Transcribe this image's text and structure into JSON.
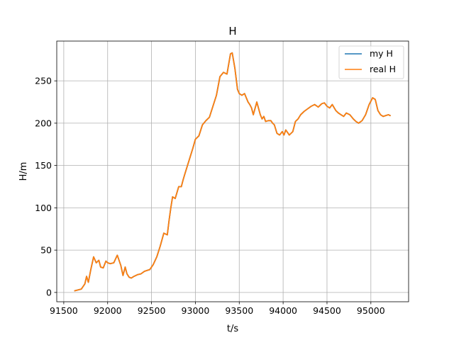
{
  "chart_data": {
    "type": "line",
    "title": "H",
    "xlabel": "t/s",
    "ylabel": "H/m",
    "xlim": [
      91420,
      95430
    ],
    "ylim": [
      -11,
      297
    ],
    "xticks": [
      91500,
      92000,
      92500,
      93000,
      93500,
      94000,
      94500,
      95000
    ],
    "xtick_labels": [
      "91500",
      "92000",
      "92500",
      "93000",
      "93500",
      "94000",
      "94500",
      "95000"
    ],
    "yticks": [
      0,
      50,
      100,
      150,
      200,
      250
    ],
    "ytick_labels": [
      "0",
      "50",
      "100",
      "150",
      "200",
      "250"
    ],
    "grid": true,
    "legend_position": "upper right",
    "series": [
      {
        "name": "my H",
        "color": "#1f77b4",
        "x": [
          91625,
          91700,
          91740,
          91760,
          91780,
          91810,
          91840,
          91870,
          91900,
          91920,
          91950,
          91980,
          92000,
          92030,
          92070,
          92110,
          92150,
          92175,
          92200,
          92220,
          92245,
          92270,
          92300,
          92340,
          92380,
          92420,
          92450,
          92480,
          92520,
          92560,
          92600,
          92640,
          92680,
          92700,
          92720,
          92740,
          92770,
          92790,
          92810,
          92840,
          92860,
          92880,
          92910,
          92940,
          92970,
          93000,
          93040,
          93080,
          93120,
          93160,
          93200,
          93240,
          93280,
          93320,
          93360,
          93400,
          93420,
          93450,
          93480,
          93500,
          93530,
          93560,
          93600,
          93620,
          93640,
          93660,
          93700,
          93740,
          93760,
          93780,
          93800,
          93830,
          93860,
          93880,
          93900,
          93930,
          93960,
          93990,
          94010,
          94030,
          94050,
          94070,
          94090,
          94110,
          94140,
          94170,
          94200,
          94240,
          94280,
          94320,
          94360,
          94400,
          94440,
          94470,
          94500,
          94530,
          94560,
          94600,
          94630,
          94660,
          94690,
          94720,
          94760,
          94800,
          94830,
          94860,
          94900,
          94940,
          94980,
          95020,
          95050,
          95080,
          95110,
          95140,
          95170,
          95200,
          95220
        ],
        "y": [
          2,
          4,
          10,
          19,
          12,
          28,
          42,
          35,
          38,
          30,
          29,
          37,
          35,
          34,
          35,
          44,
          32,
          20,
          30,
          22,
          18,
          17,
          19,
          21,
          22,
          25,
          26,
          27,
          33,
          42,
          55,
          70,
          68,
          85,
          100,
          113,
          111,
          118,
          125,
          125,
          133,
          140,
          150,
          160,
          170,
          181,
          185,
          198,
          203,
          207,
          220,
          233,
          255,
          260,
          258,
          282,
          283,
          265,
          240,
          235,
          233,
          235,
          225,
          222,
          218,
          210,
          225,
          210,
          205,
          208,
          202,
          203,
          203,
          200,
          198,
          188,
          186,
          190,
          186,
          192,
          189,
          186,
          188,
          190,
          202,
          205,
          210,
          214,
          217,
          220,
          222,
          219,
          223,
          224,
          220,
          218,
          222,
          215,
          212,
          210,
          208,
          212,
          210,
          205,
          202,
          200,
          203,
          210,
          222,
          230,
          228,
          215,
          210,
          208,
          209,
          210,
          209
        ]
      },
      {
        "name": "real H",
        "color": "#ff7f0e",
        "x": [
          91625,
          91700,
          91740,
          91760,
          91780,
          91810,
          91840,
          91870,
          91900,
          91920,
          91950,
          91980,
          92000,
          92030,
          92070,
          92110,
          92150,
          92175,
          92200,
          92220,
          92245,
          92270,
          92300,
          92340,
          92380,
          92420,
          92450,
          92480,
          92520,
          92560,
          92600,
          92640,
          92680,
          92700,
          92720,
          92740,
          92770,
          92790,
          92810,
          92840,
          92860,
          92880,
          92910,
          92940,
          92970,
          93000,
          93040,
          93080,
          93120,
          93160,
          93200,
          93240,
          93280,
          93320,
          93360,
          93400,
          93420,
          93450,
          93480,
          93500,
          93530,
          93560,
          93600,
          93620,
          93640,
          93660,
          93700,
          93740,
          93760,
          93780,
          93800,
          93830,
          93860,
          93880,
          93900,
          93930,
          93960,
          93990,
          94010,
          94030,
          94050,
          94070,
          94090,
          94110,
          94140,
          94170,
          94200,
          94240,
          94280,
          94320,
          94360,
          94400,
          94440,
          94470,
          94500,
          94530,
          94560,
          94600,
          94630,
          94660,
          94690,
          94720,
          94760,
          94800,
          94830,
          94860,
          94900,
          94940,
          94980,
          95020,
          95050,
          95080,
          95110,
          95140,
          95170,
          95200,
          95220
        ],
        "y": [
          2,
          4,
          10,
          19,
          12,
          28,
          42,
          35,
          38,
          30,
          29,
          37,
          35,
          34,
          35,
          44,
          32,
          20,
          30,
          22,
          18,
          17,
          19,
          21,
          22,
          25,
          26,
          27,
          33,
          42,
          55,
          70,
          68,
          85,
          100,
          113,
          111,
          118,
          125,
          125,
          133,
          140,
          150,
          160,
          170,
          181,
          185,
          198,
          203,
          207,
          220,
          233,
          255,
          260,
          258,
          282,
          283,
          265,
          240,
          235,
          233,
          235,
          225,
          222,
          218,
          210,
          225,
          210,
          205,
          208,
          202,
          203,
          203,
          200,
          198,
          188,
          186,
          190,
          186,
          192,
          189,
          186,
          188,
          190,
          202,
          205,
          210,
          214,
          217,
          220,
          222,
          219,
          223,
          224,
          220,
          218,
          222,
          215,
          212,
          210,
          208,
          212,
          210,
          205,
          202,
          200,
          203,
          210,
          222,
          230,
          228,
          215,
          210,
          208,
          209,
          210,
          209
        ]
      }
    ]
  }
}
